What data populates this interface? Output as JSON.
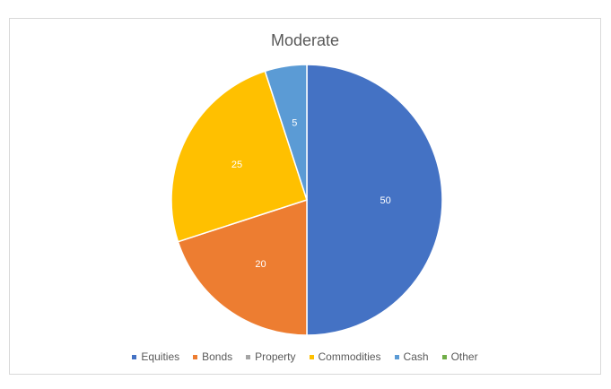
{
  "chart_data": {
    "type": "pie",
    "title": "Moderate",
    "categories": [
      "Equities",
      "Bonds",
      "Property",
      "Commodities",
      "Cash",
      "Other"
    ],
    "values": [
      50,
      20,
      0,
      25,
      5,
      0
    ],
    "data_labels": [
      "50",
      "20",
      "",
      "25",
      "5",
      ""
    ],
    "colors": [
      "#4472c4",
      "#ed7d31",
      "#a5a5a5",
      "#ffc000",
      "#5b9bd5",
      "#70ad47"
    ],
    "legend_position": "bottom",
    "start_angle": "top, clockwise"
  }
}
